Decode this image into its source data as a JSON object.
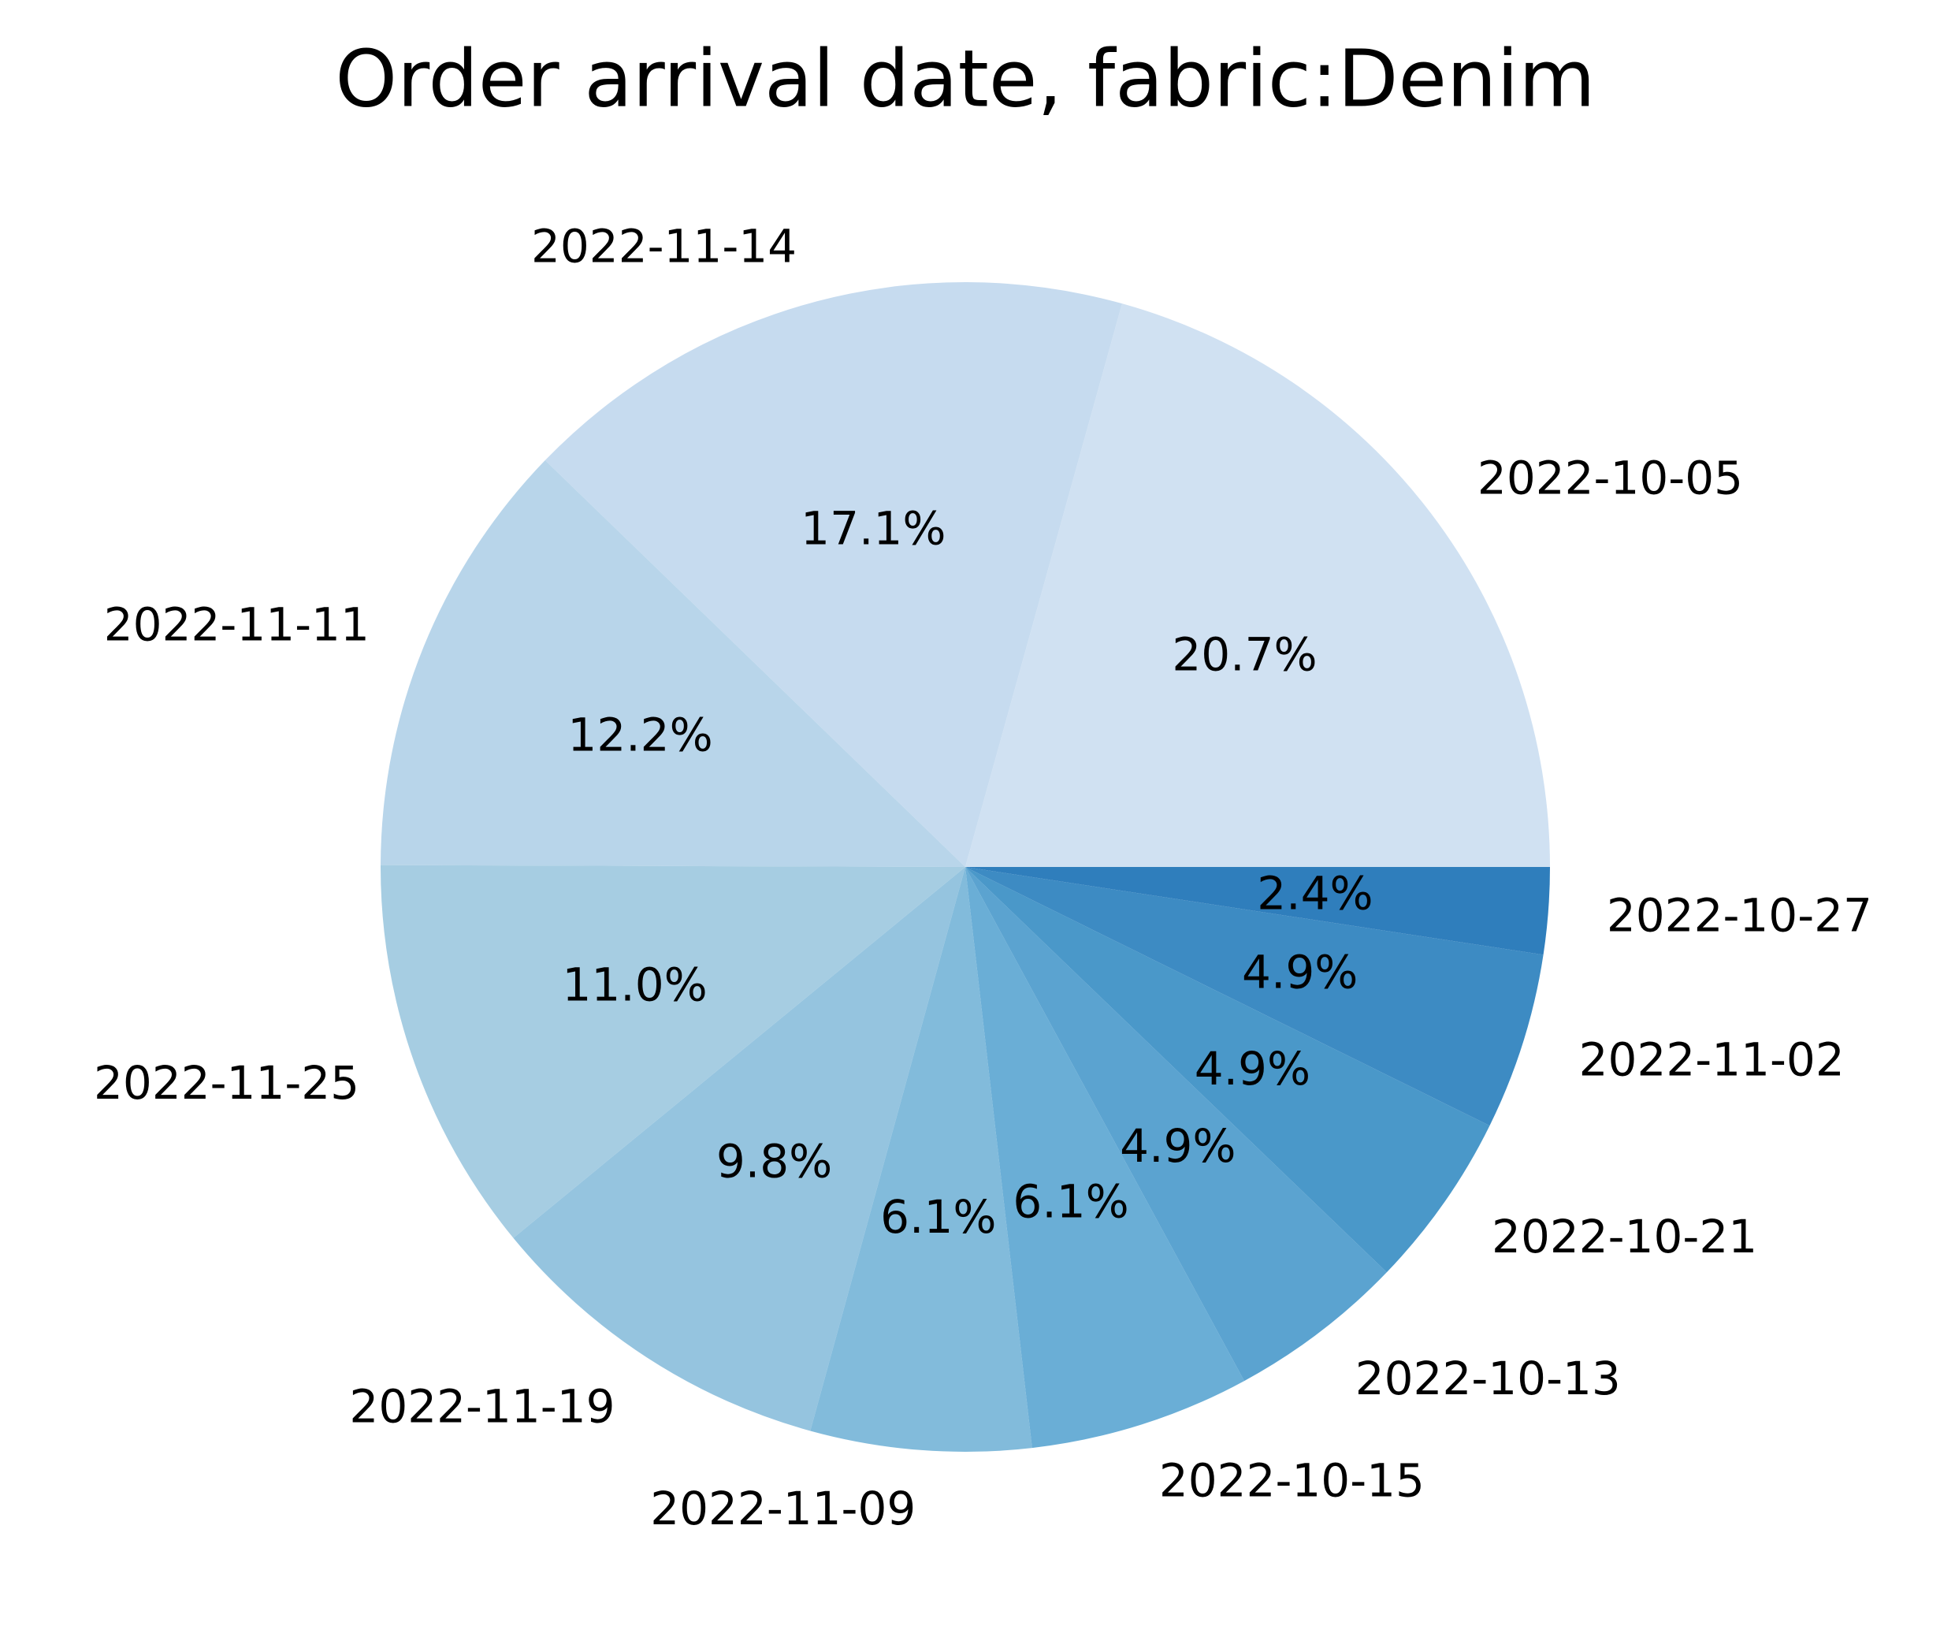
{
  "chart_data": {
    "type": "pie",
    "title": "Order arrival date, fabric:Denim",
    "slices": [
      {
        "label": "2022-10-05",
        "value": 20.7,
        "pct_label": "20.7%",
        "color": "#d0e1f2"
      },
      {
        "label": "2022-11-14",
        "value": 17.1,
        "pct_label": "17.1%",
        "color": "#c6dbef"
      },
      {
        "label": "2022-11-11",
        "value": 12.2,
        "pct_label": "12.2%",
        "color": "#b8d5ea"
      },
      {
        "label": "2022-11-25",
        "value": 11.0,
        "pct_label": "11.0%",
        "color": "#a6cde2"
      },
      {
        "label": "2022-11-19",
        "value": 9.8,
        "pct_label": "9.8%",
        "color": "#95c4df"
      },
      {
        "label": "2022-11-09",
        "value": 6.1,
        "pct_label": "6.1%",
        "color": "#82bbdb"
      },
      {
        "label": "2022-10-15",
        "value": 6.1,
        "pct_label": "6.1%",
        "color": "#6aaed6"
      },
      {
        "label": "2022-10-13",
        "value": 4.9,
        "pct_label": "4.9%",
        "color": "#5ba3d0"
      },
      {
        "label": "2022-10-21",
        "value": 4.9,
        "pct_label": "4.9%",
        "color": "#4a98c9"
      },
      {
        "label": "2022-11-02",
        "value": 4.9,
        "pct_label": "4.9%",
        "color": "#3d8bc3"
      },
      {
        "label": "2022-10-27",
        "value": 2.4,
        "pct_label": "2.4%",
        "color": "#2f7ebc"
      }
    ],
    "start_angle_deg": 0,
    "direction": "counterclockwise"
  }
}
